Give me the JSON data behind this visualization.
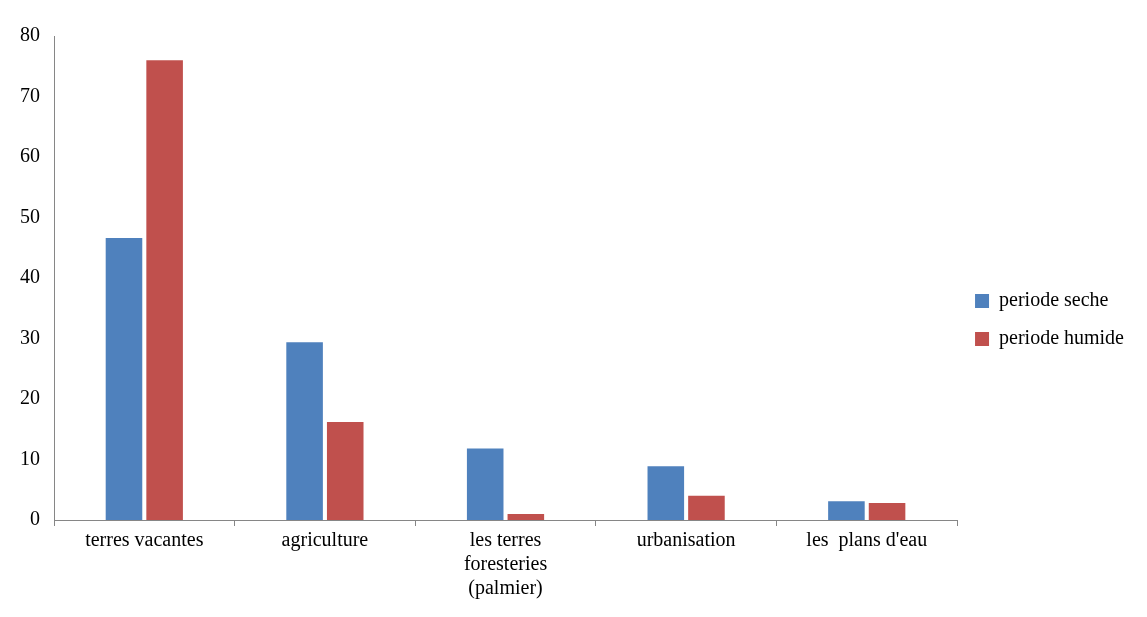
{
  "chart_data": {
    "type": "bar",
    "categories": [
      "terres vacantes",
      "agriculture",
      "les terres foresteries (palmier)",
      "urbanisation",
      "les  plans d'eau"
    ],
    "series": [
      {
        "name": "periode seche",
        "color": "#4f81bd",
        "values": [
          46.6,
          29.4,
          11.8,
          8.9,
          3.1
        ]
      },
      {
        "name": "periode humide",
        "color": "#c0504d",
        "values": [
          76.0,
          16.2,
          1.0,
          4.0,
          2.8
        ]
      }
    ],
    "ylim": [
      0,
      80
    ],
    "yticks": [
      0,
      10,
      20,
      30,
      40,
      50,
      60,
      70,
      80
    ],
    "grid": false,
    "legend": "right"
  }
}
